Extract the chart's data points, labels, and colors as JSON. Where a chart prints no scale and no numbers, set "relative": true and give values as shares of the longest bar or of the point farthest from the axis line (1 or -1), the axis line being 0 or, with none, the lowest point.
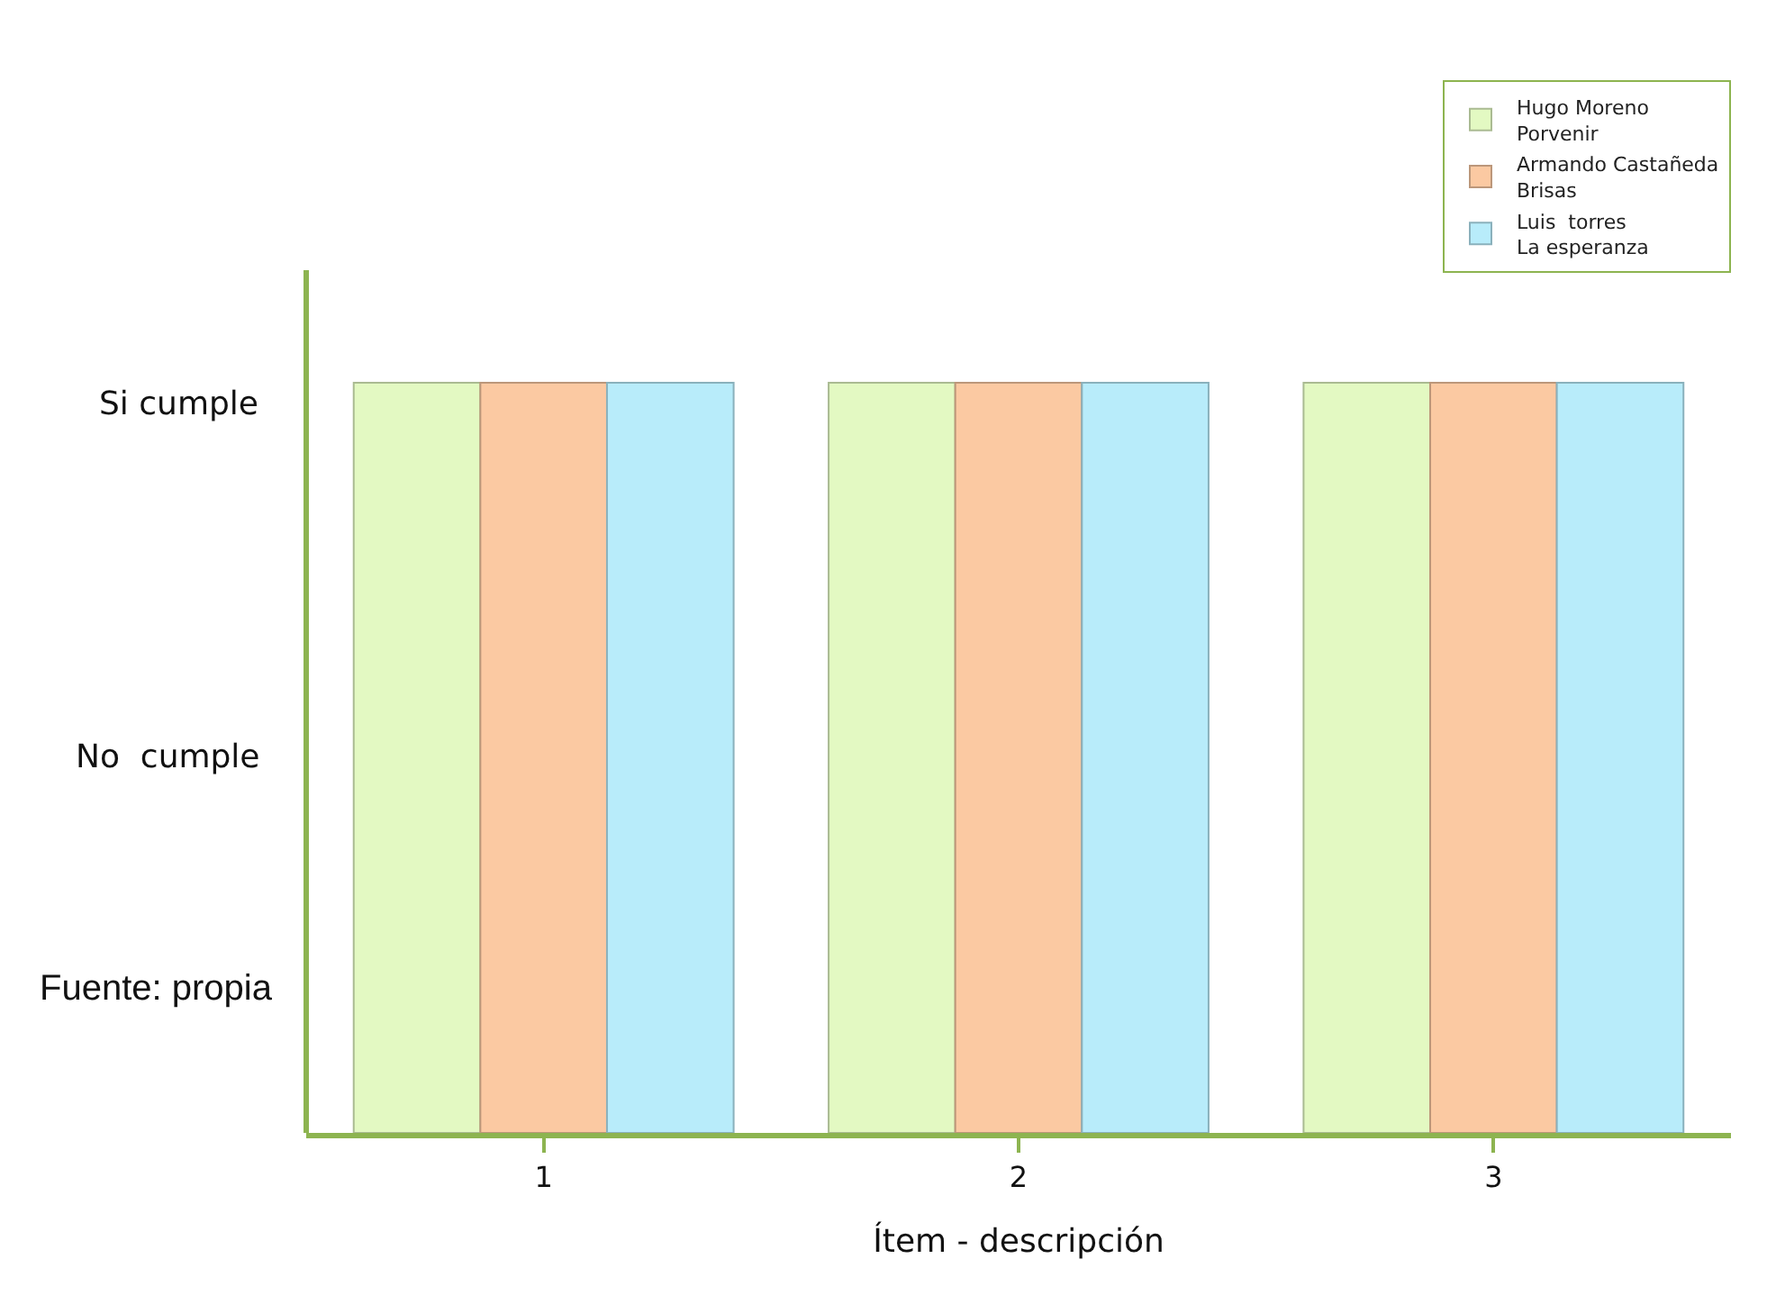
{
  "chart_data": {
    "type": "bar",
    "xlabel": "Ítem - descripción",
    "relative": true,
    "categories": [
      "1",
      "2",
      "3"
    ],
    "series": [
      {
        "name": "Hugo Moreno\nPorvenir",
        "color": "#e3f9c2",
        "values": [
          1,
          1,
          1
        ]
      },
      {
        "name": "Armando Castañeda\nBrisas",
        "color": "#fbc9a2",
        "values": [
          1,
          1,
          1
        ]
      },
      {
        "name": "Luis  torres\nLa esperanza",
        "color": "#b8ecfa",
        "values": [
          1,
          1,
          1
        ]
      }
    ],
    "grid": false,
    "legend": "top right",
    "annotations": [
      "Si cumple",
      "No  cumple",
      "Fuente: propia"
    ]
  }
}
